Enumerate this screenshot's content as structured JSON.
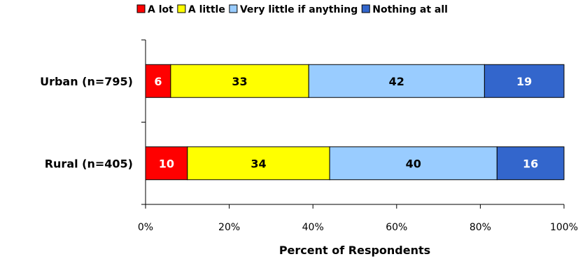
{
  "chart_data": {
    "type": "bar",
    "orientation": "horizontal",
    "stacked": "percent",
    "categories": [
      "Urban (n=795)",
      "Rural (n=405)"
    ],
    "series": [
      {
        "name": "A lot",
        "color": "#ff0000",
        "label_color": "#ffffff",
        "values": [
          6,
          10
        ]
      },
      {
        "name": "A little",
        "color": "#ffff00",
        "label_color": "#000000",
        "values": [
          33,
          34
        ]
      },
      {
        "name": "Very little if anything",
        "color": "#99ccff",
        "label_color": "#000000",
        "values": [
          42,
          40
        ]
      },
      {
        "name": "Nothing at all",
        "color": "#3366cc",
        "label_color": "#ffffff",
        "values": [
          19,
          16
        ]
      }
    ],
    "xlabel": "Percent of Respondents",
    "ylabel": "",
    "xlim": [
      0,
      100
    ],
    "xticks": [
      "0%",
      "20%",
      "40%",
      "60%",
      "80%",
      "100%"
    ],
    "grid": false,
    "legend_position": "top"
  }
}
